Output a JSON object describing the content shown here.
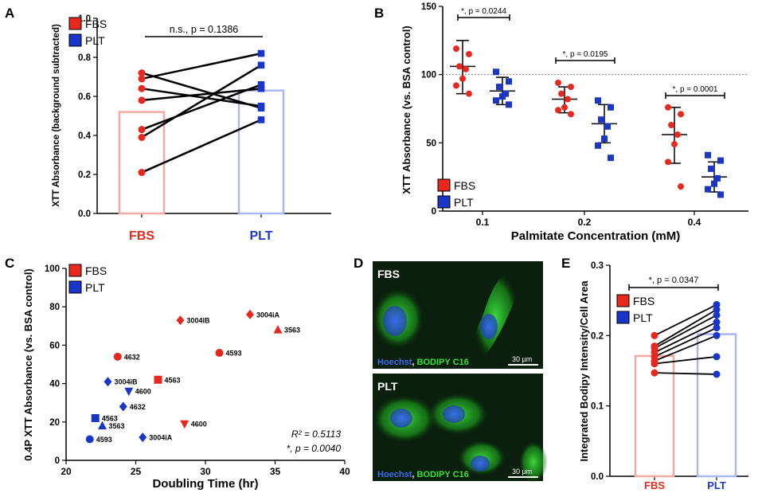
{
  "panel_labels": [
    "A",
    "B",
    "C",
    "D",
    "E"
  ],
  "colors": {
    "fbs": "#e8281e",
    "plt": "#1a36c8",
    "fbs_bar": "#f4a9a2",
    "plt_bar": "#a9b7f2",
    "cell_green": "#2fd62f",
    "cell_blue": "#2a4fd8",
    "black": "#000000"
  },
  "chart_data": [
    {
      "id": "A",
      "type": "bar+paired",
      "ylabel": "XTT Absorbance  (background subtracted)",
      "ylim": [
        0,
        1.0
      ],
      "yticks": [
        "0.0",
        "0.2",
        "0.4",
        "0.6",
        "0.8",
        "1.0"
      ],
      "categories": [
        "FBS",
        "PLT"
      ],
      "bar_means": [
        0.52,
        0.63
      ],
      "legend": [
        "FBS",
        "PLT"
      ],
      "annotation": "n.s., p = 0.1386",
      "pairs": [
        [
          0.72,
          0.54
        ],
        [
          0.69,
          0.82
        ],
        [
          0.64,
          0.55
        ],
        [
          0.58,
          0.64
        ],
        [
          0.43,
          0.66
        ],
        [
          0.39,
          0.76
        ],
        [
          0.21,
          0.48
        ]
      ]
    },
    {
      "id": "B",
      "type": "scatter",
      "xlabel": "Palmitate Concentration (mM)",
      "ylabel": "XTT Absorbance (vs. BSA control)",
      "ylim": [
        0,
        150
      ],
      "yticks": [
        "0",
        "50",
        "100",
        "150"
      ],
      "categories": [
        "0.1",
        "0.2",
        "0.4"
      ],
      "reference_line": 100,
      "legend": [
        "FBS",
        "PLT"
      ],
      "series": [
        {
          "name": "FBS",
          "groups": [
            {
              "values": [
                119,
                115,
                106,
                104,
                97,
                92,
                86
              ],
              "mean": 106,
              "sd_low": 86,
              "sd_high": 125
            },
            {
              "values": [
                94,
                91,
                86,
                82,
                76,
                74,
                71
              ],
              "mean": 82,
              "sd_low": 72,
              "sd_high": 91
            },
            {
              "values": [
                76,
                71,
                63,
                56,
                49,
                36,
                18
              ],
              "mean": 56,
              "sd_low": 35,
              "sd_high": 76
            }
          ]
        },
        {
          "name": "PLT",
          "groups": [
            {
              "values": [
                102,
                95,
                91,
                86,
                84,
                81,
                78
              ],
              "mean": 88,
              "sd_low": 78,
              "sd_high": 98
            },
            {
              "values": [
                81,
                76,
                67,
                62,
                53,
                48,
                39
              ],
              "mean": 64,
              "sd_low": 50,
              "sd_high": 78
            },
            {
              "values": [
                41,
                37,
                31,
                24,
                20,
                16,
                12
              ],
              "mean": 25,
              "sd_low": 14,
              "sd_high": 36
            }
          ]
        }
      ],
      "annotations": [
        "*, p = 0.0244",
        "*, p = 0.0195",
        "*, p = 0.0001"
      ]
    },
    {
      "id": "C",
      "type": "scatter",
      "xlabel": "Doubling Time (hr)",
      "ylabel": "0.4P XTT Absorbance (vs. BSA control)",
      "xlim": [
        20,
        40
      ],
      "ylim": [
        0,
        100
      ],
      "xticks": [
        "20",
        "25",
        "30",
        "35",
        "40"
      ],
      "yticks": [
        "0",
        "20",
        "40",
        "60",
        "80",
        "100"
      ],
      "legend": [
        "FBS",
        "PLT"
      ],
      "stats": [
        "R² = 0.5113",
        "*, p = 0.0040"
      ],
      "points": [
        {
          "x": 28.2,
          "y": 73,
          "label": "3004iB",
          "group": "FBS",
          "shape": "diamond"
        },
        {
          "x": 33.2,
          "y": 76,
          "label": "3004iA",
          "group": "FBS",
          "shape": "diamond"
        },
        {
          "x": 35.2,
          "y": 68,
          "label": "3563",
          "group": "FBS",
          "shape": "triangle"
        },
        {
          "x": 23.7,
          "y": 54,
          "label": "4632",
          "group": "FBS",
          "shape": "circle"
        },
        {
          "x": 31.0,
          "y": 56,
          "label": "4593",
          "group": "FBS",
          "shape": "circle"
        },
        {
          "x": 26.6,
          "y": 42,
          "label": "4563",
          "group": "FBS",
          "shape": "square"
        },
        {
          "x": 28.5,
          "y": 19,
          "label": "4600",
          "group": "FBS",
          "shape": "triangle-down"
        },
        {
          "x": 23.0,
          "y": 41,
          "label": "3004iB",
          "group": "PLT",
          "shape": "diamond"
        },
        {
          "x": 24.5,
          "y": 36,
          "label": "4600",
          "group": "PLT",
          "shape": "triangle-down"
        },
        {
          "x": 24.1,
          "y": 28,
          "label": "4632",
          "group": "PLT",
          "shape": "diamond"
        },
        {
          "x": 22.1,
          "y": 22,
          "label": "4563",
          "group": "PLT",
          "shape": "square"
        },
        {
          "x": 22.6,
          "y": 18,
          "label": "3563",
          "group": "PLT",
          "shape": "triangle"
        },
        {
          "x": 21.7,
          "y": 11,
          "label": "4593",
          "group": "PLT",
          "shape": "circle"
        },
        {
          "x": 25.5,
          "y": 12,
          "label": "3004iA",
          "group": "PLT",
          "shape": "diamond"
        }
      ]
    },
    {
      "id": "E",
      "type": "bar+paired",
      "ylabel": "Integrated Bodipy Intensity/Cell Area",
      "ylim": [
        0,
        0.3
      ],
      "yticks": [
        "0.0",
        "0.1",
        "0.2",
        "0.3"
      ],
      "categories": [
        "FBS",
        "PLT"
      ],
      "bar_means": [
        0.171,
        0.202
      ],
      "legend": [
        "FBS",
        "PLT"
      ],
      "annotation": "*, p = 0.0347",
      "pairs": [
        [
          0.2,
          0.244
        ],
        [
          0.185,
          0.237
        ],
        [
          0.182,
          0.229
        ],
        [
          0.176,
          0.219
        ],
        [
          0.17,
          0.211
        ],
        [
          0.164,
          0.2
        ],
        [
          0.16,
          0.17
        ],
        [
          0.147,
          0.145
        ]
      ]
    }
  ],
  "microscopy": {
    "panels": [
      {
        "label": "FBS",
        "stain_blue": "Hoechst",
        "stain_green": "BODIPY C16",
        "scale": "30 µm"
      },
      {
        "label": "PLT",
        "stain_blue": "Hoechst",
        "stain_green": "BODIPY C16",
        "scale": "30 µm"
      }
    ]
  }
}
